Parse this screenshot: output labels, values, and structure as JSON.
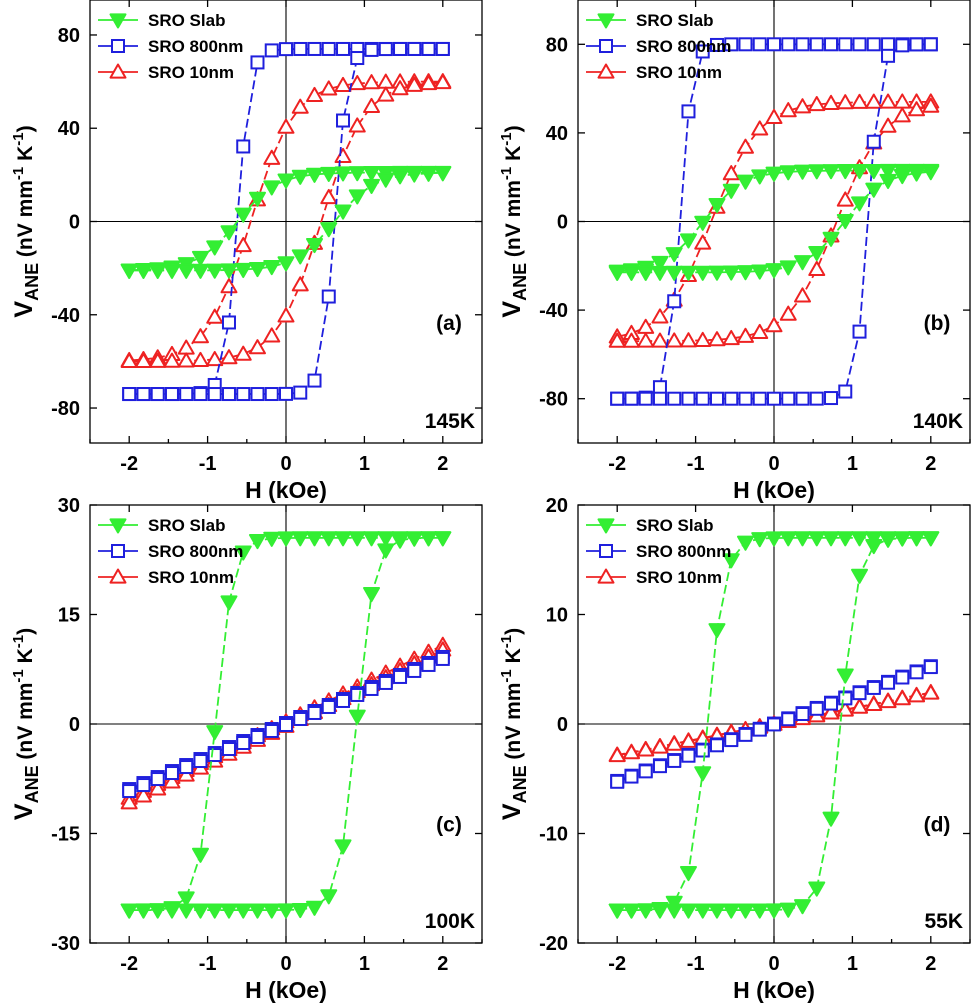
{
  "chart_data": [
    {
      "type": "line",
      "panel_label": "(a)",
      "temperature_label": "145K",
      "xlabel": "H (kOe)",
      "ylabel": "V_ANE (nV mm^-1 K^-1)",
      "ylabel_main": "V",
      "ylabel_sub": "ANE",
      "ylabel_rest": " (nV mm",
      "ylabel_sup1": "-1",
      "ylabel_mid": " K",
      "ylabel_sup2": "-1",
      "ylabel_end": ")",
      "xlim": [
        -2.5,
        2.5
      ],
      "ylim": [
        -95,
        95
      ],
      "xticks": [
        -2,
        -1,
        0,
        1,
        2
      ],
      "xtick_labels": [
        "-2",
        "-1",
        "0",
        "1",
        "2"
      ],
      "yticks": [
        -80,
        -40,
        0,
        40,
        80
      ],
      "ytick_labels": [
        "-80",
        "-40",
        "0",
        "40",
        "80"
      ],
      "legend": "top-left",
      "series": [
        {
          "name": "SRO Slab",
          "color": "#33ee33",
          "marker": "triangle-down",
          "filled": true,
          "Hc": 0.62,
          "Ms": 21,
          "w": 0.5
        },
        {
          "name": "SRO 800nm",
          "color": "#1f1fdd",
          "marker": "square",
          "filled": false,
          "Hc": 0.62,
          "Ms": 74,
          "w": 0.16
        },
        {
          "name": "SRO 10nm",
          "color": "#ee2222",
          "marker": "triangle-up",
          "filled": false,
          "Hc": 0.45,
          "Ms": 60,
          "w": 0.55
        }
      ]
    },
    {
      "type": "line",
      "panel_label": "(b)",
      "temperature_label": "140K",
      "xlabel": "H (kOe)",
      "ylabel": "V_ANE (nV mm^-1 K^-1)",
      "ylabel_main": "V",
      "ylabel_sub": "ANE",
      "ylabel_rest": " (nV mm",
      "ylabel_sup1": "-1",
      "ylabel_mid": " K",
      "ylabel_sup2": "-1",
      "ylabel_end": ")",
      "xlim": [
        -2.5,
        2.5
      ],
      "ylim": [
        -100,
        100
      ],
      "xticks": [
        -2,
        -1,
        0,
        1,
        2
      ],
      "xtick_labels": [
        "-2",
        "-1",
        "0",
        "1",
        "2"
      ],
      "yticks": [
        -80,
        -40,
        0,
        40,
        80
      ],
      "ytick_labels": [
        "-80",
        "-40",
        "0",
        "40",
        "80"
      ],
      "legend": "top-left",
      "series": [
        {
          "name": "SRO Slab",
          "color": "#33ee33",
          "marker": "triangle-down",
          "filled": true,
          "Hc": 0.9,
          "Ms": 23,
          "w": 0.5
        },
        {
          "name": "SRO 800nm",
          "color": "#1f1fdd",
          "marker": "square",
          "filled": false,
          "Hc": 1.2,
          "Ms": 80,
          "w": 0.15
        },
        {
          "name": "SRO 10nm",
          "color": "#ee2222",
          "marker": "triangle-up",
          "filled": false,
          "Hc": 0.8,
          "Ms": 54,
          "w": 0.6
        }
      ]
    },
    {
      "type": "line",
      "panel_label": "(c)",
      "temperature_label": "100K",
      "xlabel": "H (kOe)",
      "ylabel": "V_ANE (nV mm^-1 K^-1)",
      "ylabel_main": "V",
      "ylabel_sub": "ANE",
      "ylabel_rest": " (nV mm",
      "ylabel_sup1": "-1",
      "ylabel_mid": " K",
      "ylabel_sup2": "-1",
      "ylabel_end": ")",
      "xlim": [
        -2.5,
        2.5
      ],
      "ylim": [
        -30,
        30
      ],
      "xticks": [
        -2,
        -1,
        0,
        1,
        2
      ],
      "xtick_labels": [
        "-2",
        "-1",
        "0",
        "1",
        "2"
      ],
      "yticks": [
        -30,
        -15,
        0,
        15,
        30
      ],
      "ytick_labels": [
        "-30",
        "-15",
        "0",
        "15",
        "30"
      ],
      "legend": "top-left",
      "series": [
        {
          "name": "SRO Slab",
          "color": "#33ee33",
          "marker": "triangle-down",
          "filled": true,
          "Hc": 0.9,
          "Ms": 25.5,
          "w": 0.22
        },
        {
          "name": "SRO 800nm",
          "color": "#1f1fdd",
          "marker": "square",
          "filled": false,
          "Hc": 0.1,
          "Ms": 9.5,
          "linear": true
        },
        {
          "name": "SRO 10nm",
          "color": "#ee2222",
          "marker": "triangle-up",
          "filled": false,
          "Hc": 0.2,
          "Ms": 11,
          "linear": true
        }
      ]
    },
    {
      "type": "line",
      "panel_label": "(d)",
      "temperature_label": "55K",
      "xlabel": "H (kOe)",
      "ylabel": "V_ANE (nV mm^-1 K^-1)",
      "ylabel_main": "V",
      "ylabel_sub": "ANE",
      "ylabel_rest": " (nV mm",
      "ylabel_sup1": "-1",
      "ylabel_mid": " K",
      "ylabel_sup2": "-1",
      "ylabel_end": ")",
      "xlim": [
        -2.5,
        2.5
      ],
      "ylim": [
        -20,
        20
      ],
      "xticks": [
        -2,
        -1,
        0,
        1,
        2
      ],
      "xtick_labels": [
        "-2",
        "-1",
        "0",
        "1",
        "2"
      ],
      "yticks": [
        -20,
        -10,
        0,
        10,
        20
      ],
      "ytick_labels": [
        "-20",
        "-10",
        "0",
        "10",
        "20"
      ],
      "legend": "top-left",
      "series": [
        {
          "name": "SRO Slab",
          "color": "#33ee33",
          "marker": "triangle-down",
          "filled": true,
          "Hc": 0.85,
          "Ms": 17,
          "w": 0.22
        },
        {
          "name": "SRO 800nm",
          "color": "#1f1fdd",
          "marker": "square",
          "filled": false,
          "Hc": 0.05,
          "Ms": 5.5,
          "linear": true
        },
        {
          "name": "SRO 10nm",
          "color": "#ee2222",
          "marker": "triangle-up",
          "filled": false,
          "Hc": 0.05,
          "Ms": 3,
          "linear": true
        }
      ]
    }
  ]
}
